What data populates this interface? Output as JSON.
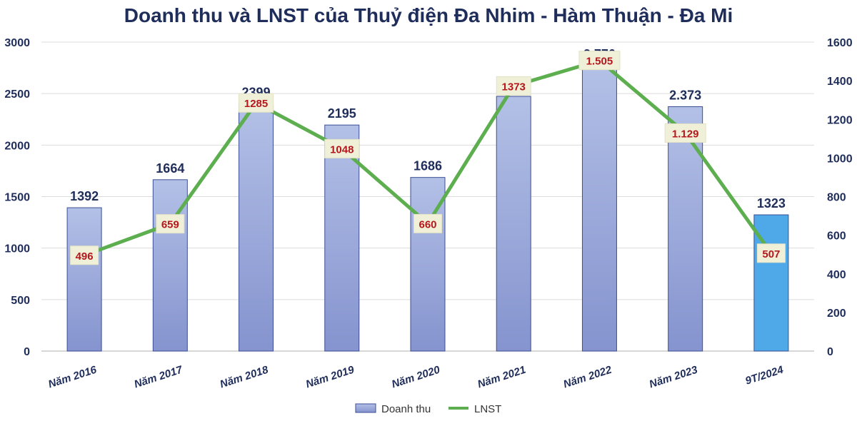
{
  "chart_data": {
    "type": "bar",
    "title": "Doanh thu và LNST của Thuỷ điện Đa Nhim - Hàm Thuận - Đa Mi",
    "categories": [
      "Năm 2016",
      "Năm 2017",
      "Năm 2018",
      "Năm 2019",
      "Năm 2020",
      "Năm 2021",
      "Năm 2022",
      "Năm 2023",
      "9T/2024"
    ],
    "series": [
      {
        "name": "Doanh thu",
        "type": "bar",
        "axis": "left",
        "values": [
          1392,
          1664,
          2399,
          2195,
          1686,
          2473,
          2770,
          2373,
          1323
        ],
        "labels": [
          "1392",
          "1664",
          "2399",
          "2195",
          "1686",
          "",
          "2.770",
          "2.373",
          "1323"
        ],
        "color": "#9aa9d8",
        "highlight_last_color": "#4fa8e8"
      },
      {
        "name": "LNST",
        "type": "line",
        "axis": "right",
        "values": [
          496,
          659,
          1285,
          1048,
          660,
          1373,
          1505,
          1129,
          507
        ],
        "labels": [
          "496",
          "659",
          "1285",
          "1048",
          "660",
          "1373",
          "1.505",
          "1.129",
          "507"
        ],
        "color": "#5cae4e"
      }
    ],
    "y_left": {
      "min": 0,
      "max": 3000,
      "ticks": [
        0,
        500,
        1000,
        1500,
        2000,
        2500,
        3000
      ]
    },
    "y_right": {
      "min": 0,
      "max": 1600,
      "ticks": [
        0,
        200,
        400,
        600,
        800,
        1000,
        1200,
        1400,
        1600
      ]
    },
    "grid": true,
    "legend": "bottom"
  }
}
